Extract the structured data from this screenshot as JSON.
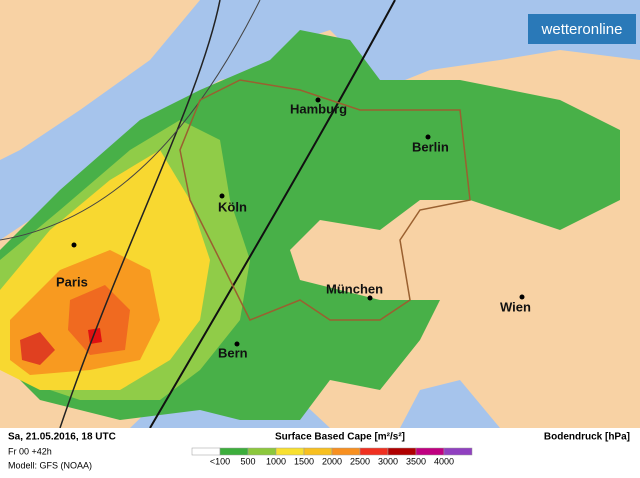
{
  "logo": "wetteronline",
  "cities": [
    "Hamburg",
    "Berlin",
    "Köln",
    "Paris",
    "München",
    "Wien",
    "Bern"
  ],
  "footer": {
    "datetime": "Sa, 21.05.2016, 18 UTC",
    "run": "Fr 00 +42h",
    "model": "Modell: GFS (NOAA)",
    "title": "Surface Based Cape [m²/s²]",
    "pressure": "Bodendruck [hPa]"
  },
  "legend": {
    "colors": [
      "#ffffff",
      "#3cae3c",
      "#8cc83c",
      "#f8e030",
      "#f8c020",
      "#f89020",
      "#f03020",
      "#b00000",
      "#c00080",
      "#9040c0"
    ],
    "labels": [
      "<100",
      "500",
      "1000",
      "1500",
      "2000",
      "2500",
      "3000",
      "3500",
      "4000"
    ]
  }
}
